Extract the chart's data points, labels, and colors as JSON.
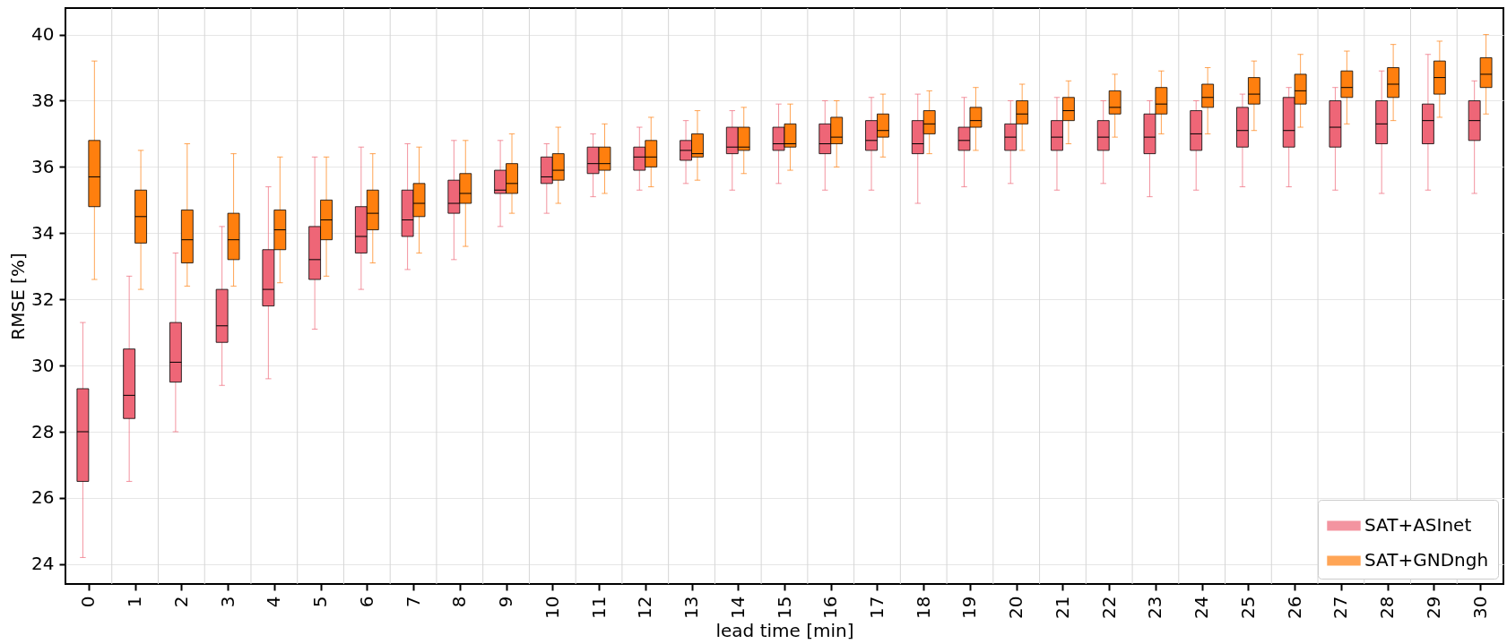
{
  "chart_data": {
    "type": "box",
    "xlabel": "lead time [min]",
    "ylabel": "RMSE [%]",
    "categories": [
      "0",
      "1",
      "2",
      "3",
      "4",
      "5",
      "6",
      "7",
      "8",
      "9",
      "10",
      "11",
      "12",
      "13",
      "14",
      "15",
      "16",
      "17",
      "18",
      "19",
      "20",
      "21",
      "22",
      "23",
      "24",
      "25",
      "26",
      "27",
      "28",
      "29",
      "30"
    ],
    "ylim": [
      23.4,
      40.8
    ],
    "yticks": [
      24,
      26,
      28,
      30,
      32,
      34,
      36,
      38,
      40
    ],
    "grid": true,
    "legend": "bottom right",
    "series": [
      {
        "name": "SAT+ASInet",
        "color": "#ee6677",
        "boxes": [
          {
            "low": 24.2,
            "q1": 26.5,
            "median": 28.0,
            "q3": 29.3,
            "high": 31.3
          },
          {
            "low": 26.5,
            "q1": 28.4,
            "median": 29.1,
            "q3": 30.5,
            "high": 32.7
          },
          {
            "low": 28.0,
            "q1": 29.5,
            "median": 30.1,
            "q3": 31.3,
            "high": 33.4
          },
          {
            "low": 29.4,
            "q1": 30.7,
            "median": 31.2,
            "q3": 32.3,
            "high": 34.2
          },
          {
            "low": 29.6,
            "q1": 31.8,
            "median": 32.3,
            "q3": 33.5,
            "high": 35.4
          },
          {
            "low": 31.1,
            "q1": 32.6,
            "median": 33.2,
            "q3": 34.2,
            "high": 36.3
          },
          {
            "low": 32.3,
            "q1": 33.4,
            "median": 33.9,
            "q3": 34.8,
            "high": 36.6
          },
          {
            "low": 32.9,
            "q1": 33.9,
            "median": 34.4,
            "q3": 35.3,
            "high": 36.7
          },
          {
            "low": 33.2,
            "q1": 34.6,
            "median": 34.9,
            "q3": 35.6,
            "high": 36.8
          },
          {
            "low": 34.2,
            "q1": 35.2,
            "median": 35.3,
            "q3": 35.9,
            "high": 36.8
          },
          {
            "low": 34.6,
            "q1": 35.5,
            "median": 35.7,
            "q3": 36.3,
            "high": 36.7
          },
          {
            "low": 35.1,
            "q1": 35.8,
            "median": 36.1,
            "q3": 36.6,
            "high": 37.0
          },
          {
            "low": 35.3,
            "q1": 35.9,
            "median": 36.3,
            "q3": 36.6,
            "high": 37.2
          },
          {
            "low": 35.5,
            "q1": 36.2,
            "median": 36.5,
            "q3": 36.8,
            "high": 37.4
          },
          {
            "low": 35.3,
            "q1": 36.4,
            "median": 36.6,
            "q3": 37.2,
            "high": 37.7
          },
          {
            "low": 35.5,
            "q1": 36.5,
            "median": 36.7,
            "q3": 37.2,
            "high": 37.9
          },
          {
            "low": 35.3,
            "q1": 36.4,
            "median": 36.7,
            "q3": 37.3,
            "high": 38.0
          },
          {
            "low": 35.3,
            "q1": 36.5,
            "median": 36.8,
            "q3": 37.4,
            "high": 38.1
          },
          {
            "low": 34.9,
            "q1": 36.4,
            "median": 36.7,
            "q3": 37.4,
            "high": 38.2
          },
          {
            "low": 35.4,
            "q1": 36.5,
            "median": 36.8,
            "q3": 37.2,
            "high": 38.1
          },
          {
            "low": 35.5,
            "q1": 36.5,
            "median": 36.9,
            "q3": 37.3,
            "high": 38.0
          },
          {
            "low": 35.3,
            "q1": 36.5,
            "median": 36.9,
            "q3": 37.4,
            "high": 38.1
          },
          {
            "low": 35.5,
            "q1": 36.5,
            "median": 36.9,
            "q3": 37.4,
            "high": 38.0
          },
          {
            "low": 35.1,
            "q1": 36.4,
            "median": 36.9,
            "q3": 37.6,
            "high": 38.0
          },
          {
            "low": 35.3,
            "q1": 36.5,
            "median": 37.0,
            "q3": 37.7,
            "high": 38.0
          },
          {
            "low": 35.4,
            "q1": 36.6,
            "median": 37.1,
            "q3": 37.8,
            "high": 38.2
          },
          {
            "low": 35.4,
            "q1": 36.6,
            "median": 37.1,
            "q3": 38.1,
            "high": 38.4
          },
          {
            "low": 35.3,
            "q1": 36.6,
            "median": 37.2,
            "q3": 38.0,
            "high": 38.4
          },
          {
            "low": 35.2,
            "q1": 36.7,
            "median": 37.3,
            "q3": 38.0,
            "high": 38.9
          },
          {
            "low": 35.3,
            "q1": 36.7,
            "median": 37.4,
            "q3": 37.9,
            "high": 39.4
          },
          {
            "low": 35.2,
            "q1": 36.8,
            "median": 37.4,
            "q3": 38.0,
            "high": 38.6
          }
        ]
      },
      {
        "name": "SAT+GNDngh",
        "color": "#ff7f0e",
        "boxes": [
          {
            "low": 32.6,
            "q1": 34.8,
            "median": 35.7,
            "q3": 36.8,
            "high": 39.2
          },
          {
            "low": 32.3,
            "q1": 33.7,
            "median": 34.5,
            "q3": 35.3,
            "high": 36.5
          },
          {
            "low": 32.4,
            "q1": 33.1,
            "median": 33.8,
            "q3": 34.7,
            "high": 36.7
          },
          {
            "low": 32.4,
            "q1": 33.2,
            "median": 33.8,
            "q3": 34.6,
            "high": 36.4
          },
          {
            "low": 32.5,
            "q1": 33.5,
            "median": 34.1,
            "q3": 34.7,
            "high": 36.3
          },
          {
            "low": 32.7,
            "q1": 33.8,
            "median": 34.4,
            "q3": 35.0,
            "high": 36.3
          },
          {
            "low": 33.1,
            "q1": 34.1,
            "median": 34.6,
            "q3": 35.3,
            "high": 36.4
          },
          {
            "low": 33.4,
            "q1": 34.5,
            "median": 34.9,
            "q3": 35.5,
            "high": 36.6
          },
          {
            "low": 33.6,
            "q1": 34.9,
            "median": 35.2,
            "q3": 35.8,
            "high": 36.8
          },
          {
            "low": 34.6,
            "q1": 35.2,
            "median": 35.5,
            "q3": 36.1,
            "high": 37.0
          },
          {
            "low": 34.9,
            "q1": 35.6,
            "median": 35.9,
            "q3": 36.4,
            "high": 37.2
          },
          {
            "low": 35.2,
            "q1": 35.9,
            "median": 36.1,
            "q3": 36.6,
            "high": 37.3
          },
          {
            "low": 35.4,
            "q1": 36.0,
            "median": 36.3,
            "q3": 36.8,
            "high": 37.5
          },
          {
            "low": 35.6,
            "q1": 36.3,
            "median": 36.4,
            "q3": 37.0,
            "high": 37.7
          },
          {
            "low": 35.8,
            "q1": 36.5,
            "median": 36.6,
            "q3": 37.2,
            "high": 37.8
          },
          {
            "low": 35.9,
            "q1": 36.6,
            "median": 36.7,
            "q3": 37.3,
            "high": 37.9
          },
          {
            "low": 36.0,
            "q1": 36.7,
            "median": 36.9,
            "q3": 37.5,
            "high": 38.0
          },
          {
            "low": 36.3,
            "q1": 36.9,
            "median": 37.1,
            "q3": 37.6,
            "high": 38.2
          },
          {
            "low": 36.4,
            "q1": 37.0,
            "median": 37.3,
            "q3": 37.7,
            "high": 38.3
          },
          {
            "low": 36.5,
            "q1": 37.2,
            "median": 37.4,
            "q3": 37.8,
            "high": 38.4
          },
          {
            "low": 36.5,
            "q1": 37.3,
            "median": 37.6,
            "q3": 38.0,
            "high": 38.5
          },
          {
            "low": 36.7,
            "q1": 37.4,
            "median": 37.7,
            "q3": 38.1,
            "high": 38.6
          },
          {
            "low": 36.9,
            "q1": 37.6,
            "median": 37.8,
            "q3": 38.3,
            "high": 38.8
          },
          {
            "low": 37.0,
            "q1": 37.6,
            "median": 37.9,
            "q3": 38.4,
            "high": 38.9
          },
          {
            "low": 37.0,
            "q1": 37.8,
            "median": 38.1,
            "q3": 38.5,
            "high": 39.0
          },
          {
            "low": 37.1,
            "q1": 37.9,
            "median": 38.2,
            "q3": 38.7,
            "high": 39.2
          },
          {
            "low": 37.2,
            "q1": 37.9,
            "median": 38.3,
            "q3": 38.8,
            "high": 39.4
          },
          {
            "low": 37.3,
            "q1": 38.1,
            "median": 38.4,
            "q3": 38.9,
            "high": 39.5
          },
          {
            "low": 37.4,
            "q1": 38.1,
            "median": 38.5,
            "q3": 39.0,
            "high": 39.7
          },
          {
            "low": 37.5,
            "q1": 38.2,
            "median": 38.7,
            "q3": 39.2,
            "high": 39.8
          },
          {
            "low": 37.6,
            "q1": 38.4,
            "median": 38.8,
            "q3": 39.3,
            "high": 40.0
          }
        ]
      }
    ]
  }
}
